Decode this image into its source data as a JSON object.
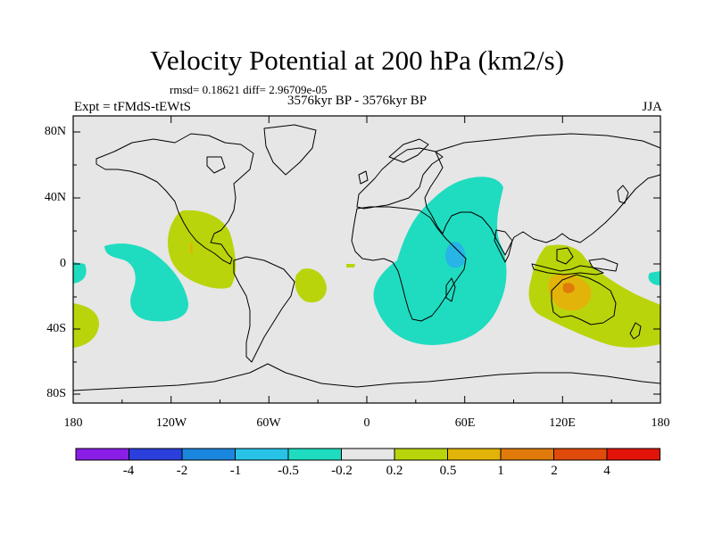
{
  "title": "Velocity Potential at 200 hPa (km2/s)",
  "stats": "rmsd= 0.18621 diff= 2.96709e-05",
  "experiment": "Expt = tFMdS-tEWtS",
  "period": "3576kyr BP - 3576kyr BP",
  "season": "JJA",
  "y_axis_labels": [
    "80N",
    "40N",
    "0",
    "40S",
    "80S"
  ],
  "x_axis_labels": [
    "180",
    "120W",
    "60W",
    "0",
    "60E",
    "120E",
    "180"
  ],
  "colorbar": {
    "labels": [
      "-4",
      "-2",
      "-1",
      "-0.5",
      "-0.2",
      "0.2",
      "0.5",
      "1",
      "2",
      "4"
    ],
    "colors": [
      "#8a1ee6",
      "#2a3fdc",
      "#1b86dd",
      "#27c2e6",
      "#1fdcc0",
      "#e6e6e6",
      "#bad40c",
      "#e2b40a",
      "#e07b0b",
      "#e04a0a",
      "#e2140a"
    ]
  },
  "colors": {
    "ocean_background": "#e6e6e6",
    "neg_light": "#1fdcc0",
    "neg_mid": "#27b4e6",
    "pos_light": "#bad40c",
    "pos_mid": "#e2b40a",
    "pos_strong": "#e07b0b"
  }
}
